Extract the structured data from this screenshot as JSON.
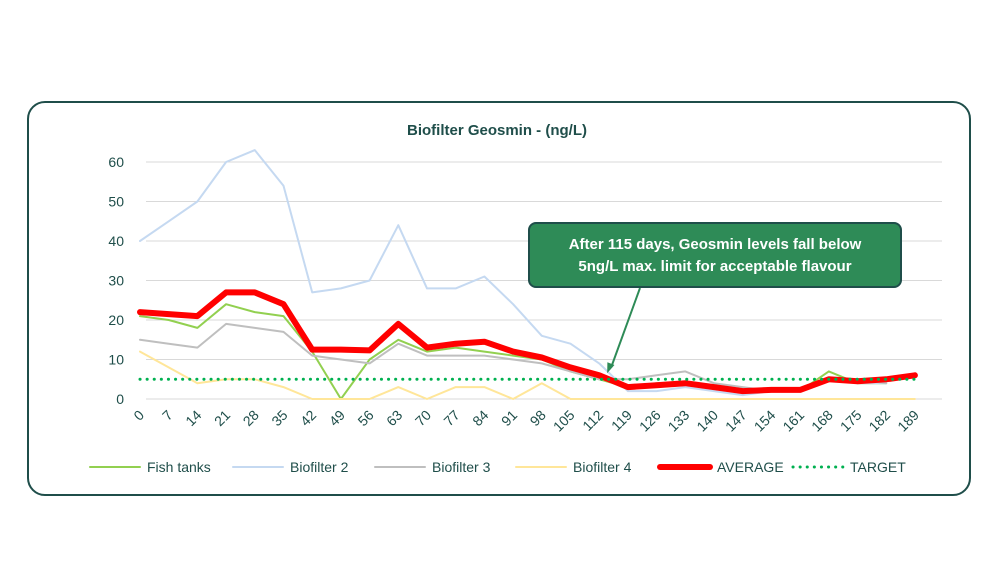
{
  "chart_data": {
    "type": "line",
    "title": "Biofilter Geosmin - (ng/L)",
    "xlabel": "",
    "ylabel": "",
    "ylim": [
      0,
      60
    ],
    "yticks": [
      0,
      10,
      20,
      30,
      40,
      50,
      60
    ],
    "grid": true,
    "legend_position": "bottom",
    "categories": [
      "0",
      "7",
      "14",
      "21",
      "28",
      "35",
      "42",
      "49",
      "56",
      "63",
      "70",
      "77",
      "84",
      "91",
      "98",
      "105",
      "112",
      "119",
      "126",
      "133",
      "140",
      "147",
      "154",
      "161",
      "168",
      "175",
      "182",
      "189"
    ],
    "series": [
      {
        "name": "Fish tanks",
        "color": "#92d050",
        "width": 2,
        "style": "solid",
        "values": [
          21,
          20,
          18,
          24,
          22,
          21,
          12,
          0,
          10,
          15,
          12,
          13,
          12,
          11,
          10,
          7,
          5,
          3,
          4,
          4,
          3,
          2,
          2,
          2,
          7,
          4,
          4,
          null
        ]
      },
      {
        "name": "Biofilter 2",
        "color": "#c5d9f1",
        "width": 2,
        "style": "solid",
        "values": [
          40,
          45,
          50,
          60,
          63,
          54,
          27,
          28,
          30,
          44,
          28,
          28,
          31,
          24,
          16,
          14,
          9,
          2,
          2,
          3,
          2,
          1,
          2,
          2,
          5,
          4,
          4,
          null
        ]
      },
      {
        "name": "Biofilter 3",
        "color": "#bfbfbf",
        "width": 2,
        "style": "solid",
        "values": [
          15,
          14,
          13,
          19,
          18,
          17,
          11,
          10,
          9,
          14,
          11,
          11,
          11,
          10,
          9,
          7,
          5,
          5,
          6,
          7,
          4,
          3,
          2,
          2,
          5,
          5,
          4,
          null
        ]
      },
      {
        "name": "Biofilter 4",
        "color": "#ffe699",
        "width": 2,
        "style": "solid",
        "values": [
          12,
          8,
          4,
          5,
          5,
          3,
          0,
          0,
          0,
          3,
          0,
          3,
          3,
          0,
          4,
          0,
          0,
          0,
          0,
          0,
          0,
          0,
          0,
          0,
          0,
          0,
          0,
          0
        ]
      },
      {
        "name": "AVERAGE",
        "color": "#ff0000",
        "width": 6,
        "style": "solid",
        "values": [
          22,
          21.5,
          21,
          27,
          27,
          24,
          12.5,
          12.5,
          12.3,
          19,
          13,
          14,
          14.5,
          12,
          10.5,
          8,
          6,
          3,
          3.5,
          4,
          3,
          2,
          2.3,
          2.3,
          5,
          4.5,
          5,
          6
        ]
      },
      {
        "name": "TARGET",
        "color": "#00b050",
        "width": 3,
        "style": "dotted",
        "values": [
          5,
          5,
          5,
          5,
          5,
          5,
          5,
          5,
          5,
          5,
          5,
          5,
          5,
          5,
          5,
          5,
          5,
          5,
          5,
          5,
          5,
          5,
          5,
          5,
          5,
          5,
          5,
          5
        ]
      }
    ],
    "annotations": [
      {
        "lines": [
          "After 115 days, Geosmin levels fall below",
          "5ng/L max. limit for acceptable flavour"
        ],
        "points_to": {
          "x": "112",
          "y": 5
        }
      }
    ]
  },
  "colors": {
    "card_border": "#1f4e4a",
    "grid": "#d9d9d9",
    "text": "#1f4e4a",
    "callout_fill": "#2e8b57"
  }
}
